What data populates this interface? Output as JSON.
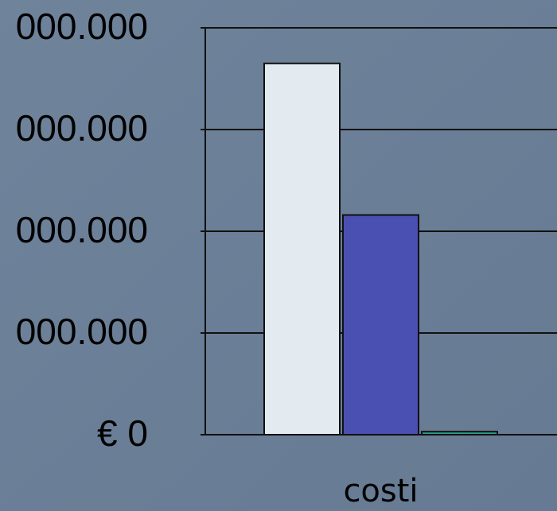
{
  "chart_data": {
    "type": "bar",
    "categories": [
      "costi"
    ],
    "series": [
      {
        "color": "#e3ebf1",
        "values": [
          3.65
        ]
      },
      {
        "color": "#4a4fb2",
        "values": [
          2.16
        ]
      },
      {
        "color": "#2b9c8c",
        "values": [
          0.03
        ]
      }
    ],
    "ylim": [
      0,
      4
    ],
    "yticks": [
      {
        "value": 0,
        "label": "€ 0"
      },
      {
        "value": 1,
        "label": "000.000"
      },
      {
        "value": 2,
        "label": "000.000"
      },
      {
        "value": 3,
        "label": "000.000"
      },
      {
        "value": 4,
        "label": "000.000"
      }
    ],
    "grid": true
  }
}
